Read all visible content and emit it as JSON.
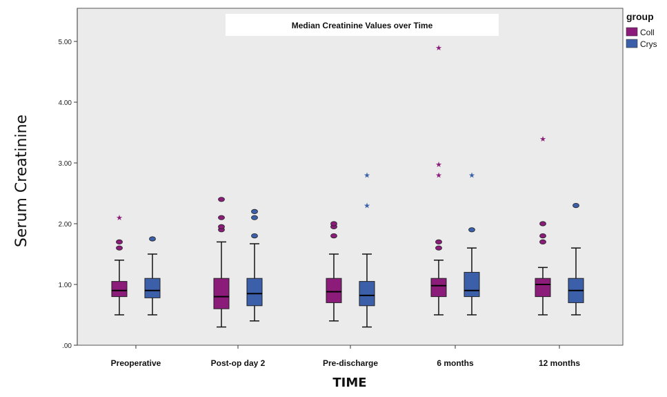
{
  "chart_data": {
    "type": "boxplot",
    "title": "Median Creatinine Values over Time",
    "xlabel": "TIME",
    "ylabel": "Serum Creatinine",
    "ylim": [
      0,
      5.5
    ],
    "yticks": [
      0,
      1,
      2,
      3,
      4,
      5
    ],
    "ytick_labels": [
      ".00",
      "1.00",
      "2.00",
      "3.00",
      "4.00",
      "5.00"
    ],
    "legend": {
      "title": "group",
      "position": "top-right"
    },
    "categories": [
      "Preoperative",
      "Post-op day 2",
      "Pre-discharge",
      "6 months",
      "12 months"
    ],
    "series": [
      {
        "name": "Coll",
        "color": "#8b1c7a",
        "boxes": [
          {
            "min": 0.5,
            "q1": 0.8,
            "median": 0.9,
            "q3": 1.05,
            "max": 1.4,
            "outliers": [
              1.6,
              1.7
            ],
            "extremes": [
              2.1
            ]
          },
          {
            "min": 0.3,
            "q1": 0.6,
            "median": 0.8,
            "q3": 1.1,
            "max": 1.7,
            "outliers": [
              1.9,
              1.95,
              2.1,
              2.4
            ],
            "extremes": []
          },
          {
            "min": 0.4,
            "q1": 0.7,
            "median": 0.88,
            "q3": 1.1,
            "max": 1.5,
            "outliers": [
              1.8,
              1.95,
              2.0
            ],
            "extremes": []
          },
          {
            "min": 0.5,
            "q1": 0.8,
            "median": 0.98,
            "q3": 1.1,
            "max": 1.4,
            "outliers": [
              1.6,
              1.7
            ],
            "extremes": [
              2.8,
              2.98,
              4.9
            ]
          },
          {
            "min": 0.5,
            "q1": 0.8,
            "median": 1.0,
            "q3": 1.1,
            "max": 1.28,
            "outliers": [
              1.7,
              1.8,
              2.0
            ],
            "extremes": [
              3.4
            ]
          }
        ]
      },
      {
        "name": "Crys",
        "color": "#3b5fa8",
        "boxes": [
          {
            "min": 0.5,
            "q1": 0.78,
            "median": 0.9,
            "q3": 1.1,
            "max": 1.5,
            "outliers": [
              1.75
            ],
            "extremes": []
          },
          {
            "min": 0.4,
            "q1": 0.65,
            "median": 0.85,
            "q3": 1.1,
            "max": 1.67,
            "outliers": [
              1.8,
              2.1,
              2.2
            ],
            "extremes": []
          },
          {
            "min": 0.3,
            "q1": 0.65,
            "median": 0.82,
            "q3": 1.05,
            "max": 1.5,
            "outliers": [],
            "extremes": [
              2.3,
              2.8
            ]
          },
          {
            "min": 0.5,
            "q1": 0.8,
            "median": 0.9,
            "q3": 1.2,
            "max": 1.6,
            "outliers": [
              1.9
            ],
            "extremes": [
              2.8
            ]
          },
          {
            "min": 0.5,
            "q1": 0.7,
            "median": 0.9,
            "q3": 1.1,
            "max": 1.6,
            "outliers": [
              2.3
            ],
            "extremes": []
          }
        ]
      }
    ]
  }
}
